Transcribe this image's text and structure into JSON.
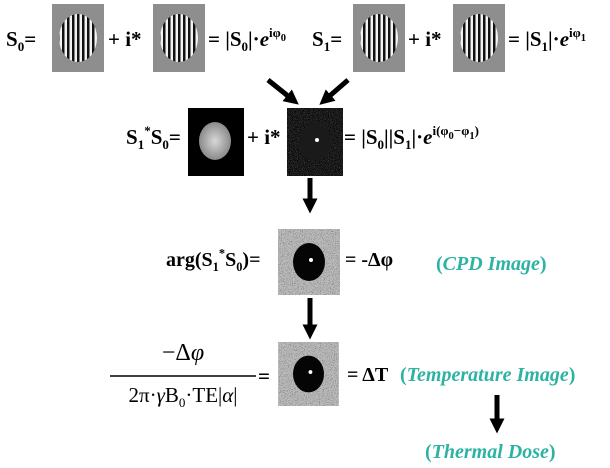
{
  "row1": {
    "s0_def": [
      {
        "text": "S",
        "style": "normal"
      },
      {
        "text": "0",
        "style": "sub"
      },
      {
        "text": "=",
        "style": "normal"
      }
    ],
    "s0_plus": [
      {
        "text": "+ i*",
        "style": "normal"
      }
    ],
    "s0_polar": [
      {
        "text": "= |S",
        "style": "normal"
      },
      {
        "text": "0",
        "style": "sub"
      },
      {
        "text": "|·",
        "style": "normal"
      },
      {
        "text": "e",
        "style": "italic"
      },
      {
        "text": "iφ",
        "style": "sup"
      },
      {
        "text": "0",
        "style": "supsub"
      }
    ],
    "s1_def": [
      {
        "text": "S",
        "style": "normal"
      },
      {
        "text": "1",
        "style": "sub"
      },
      {
        "text": "=",
        "style": "normal"
      }
    ],
    "s1_plus": [
      {
        "text": "+ i*",
        "style": "normal"
      }
    ],
    "s1_polar": [
      {
        "text": "= |S",
        "style": "normal"
      },
      {
        "text": "1",
        "style": "sub"
      },
      {
        "text": "|·",
        "style": "normal"
      },
      {
        "text": "e",
        "style": "italic"
      },
      {
        "text": "iφ",
        "style": "sup"
      },
      {
        "text": "1",
        "style": "supsub"
      }
    ]
  },
  "row2": {
    "product": [
      {
        "text": "S",
        "style": "normal"
      },
      {
        "text": "1",
        "style": "sub"
      },
      {
        "text": "*",
        "style": "sup"
      },
      {
        "text": "S",
        "style": "normal"
      },
      {
        "text": "0",
        "style": "sub"
      },
      {
        "text": "=",
        "style": "normal"
      }
    ],
    "plus": [
      {
        "text": "+ i*",
        "style": "normal"
      }
    ],
    "polar": [
      {
        "text": "= |S",
        "style": "normal"
      },
      {
        "text": "0",
        "style": "sub"
      },
      {
        "text": "||S",
        "style": "normal"
      },
      {
        "text": "1",
        "style": "sub"
      },
      {
        "text": "|·",
        "style": "normal"
      },
      {
        "text": "e",
        "style": "italic"
      },
      {
        "text": "i(φ",
        "style": "sup"
      },
      {
        "text": "0",
        "style": "supsub"
      },
      {
        "text": "−φ",
        "style": "sup"
      },
      {
        "text": "1",
        "style": "supsub"
      },
      {
        "text": ")",
        "style": "sup"
      }
    ]
  },
  "row3": {
    "arg": [
      {
        "text": "arg(S",
        "style": "normal"
      },
      {
        "text": "1",
        "style": "sub"
      },
      {
        "text": "*",
        "style": "sup"
      },
      {
        "text": "S",
        "style": "normal"
      },
      {
        "text": "0",
        "style": "sub"
      },
      {
        "text": ")=",
        "style": "normal"
      }
    ],
    "result": [
      {
        "text": "= -Δφ",
        "style": "normal"
      }
    ],
    "label": [
      {
        "text": "(",
        "style": "normal"
      },
      {
        "text": "CPD Image",
        "style": "italic"
      },
      {
        "text": ")",
        "style": "normal"
      }
    ]
  },
  "row4": {
    "numerator": [
      {
        "text": "−Δ",
        "style": "normal"
      },
      {
        "text": "φ",
        "style": "italic"
      }
    ],
    "denominator": [
      {
        "text": "2π·",
        "style": "normal"
      },
      {
        "text": "γ",
        "style": "italic"
      },
      {
        "text": "B",
        "style": "normal"
      },
      {
        "text": "0",
        "style": "sub"
      },
      {
        "text": "·TE|",
        "style": "normal"
      },
      {
        "text": "α",
        "style": "italic"
      },
      {
        "text": "|",
        "style": "normal"
      }
    ],
    "equals": [
      {
        "text": "=",
        "style": "normal"
      }
    ],
    "result": [
      {
        "text": "= ΔT",
        "style": "normal"
      }
    ],
    "label": [
      {
        "text": "(",
        "style": "normal"
      },
      {
        "text": "Temperature Image",
        "style": "italic"
      },
      {
        "text": ")",
        "style": "normal"
      }
    ]
  },
  "row5": {
    "label": [
      {
        "text": "(",
        "style": "normal"
      },
      {
        "text": "Thermal Dose",
        "style": "italic"
      },
      {
        "text": ")",
        "style": "normal"
      }
    ]
  }
}
